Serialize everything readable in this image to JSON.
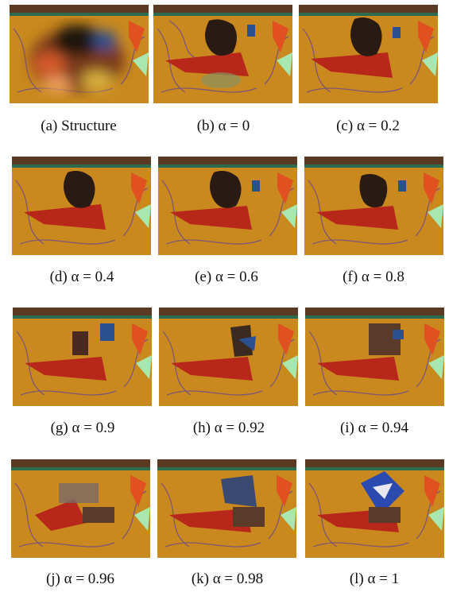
{
  "figure": {
    "panels": [
      {
        "id": "a",
        "caption": "(a) Structure"
      },
      {
        "id": "b",
        "caption": "(b) α = 0"
      },
      {
        "id": "c",
        "caption": "(c) α = 0.2"
      },
      {
        "id": "d",
        "caption": "(d) α = 0.4"
      },
      {
        "id": "e",
        "caption": "(e) α = 0.6"
      },
      {
        "id": "f",
        "caption": "(f) α = 0.8"
      },
      {
        "id": "g",
        "caption": "(g) α = 0.9"
      },
      {
        "id": "h",
        "caption": "(h) α = 0.92"
      },
      {
        "id": "i",
        "caption": "(i) α = 0.94"
      },
      {
        "id": "j",
        "caption": "(j) α = 0.96"
      },
      {
        "id": "k",
        "caption": "(k) α = 0.98"
      },
      {
        "id": "l",
        "caption": "(l) α = 1"
      }
    ]
  }
}
